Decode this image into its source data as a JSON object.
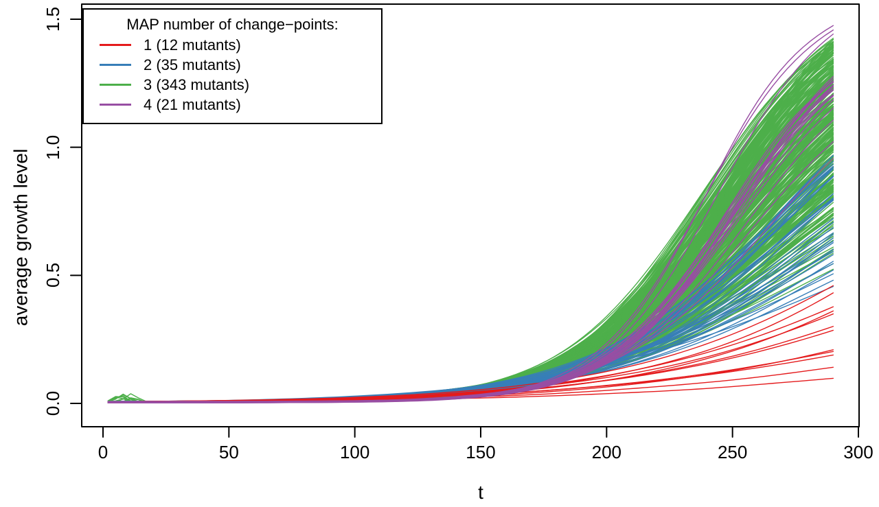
{
  "chart_data": {
    "type": "line",
    "title": "",
    "xlabel": "t",
    "ylabel": "average growth level",
    "xlim": [
      0,
      300
    ],
    "ylim": [
      0,
      1.5
    ],
    "x_ticks": [
      0,
      50,
      100,
      150,
      200,
      250,
      300
    ],
    "y_ticks": [
      "0.0",
      "0.5",
      "1.0",
      "1.5"
    ],
    "t_data_range": [
      2,
      290
    ],
    "grid": false,
    "legend": {
      "title": "MAP number of change−points:",
      "position": "top-left",
      "items": [
        {
          "label": "1 (12 mutants)",
          "color": "#E41A1C"
        },
        {
          "label": "2 (35 mutants)",
          "color": "#377EB8"
        },
        {
          "label": "3 (343 mutants)",
          "color": "#4DAF4A"
        },
        {
          "label": "4 (21 mutants)",
          "color": "#984EA3"
        }
      ]
    },
    "seed": 1337,
    "series_groups": [
      {
        "name": "changepoints-1",
        "label": "1 (12 mutants)",
        "color": "#E41A1C",
        "count": 12,
        "end_values": [
          0.1,
          0.14,
          0.19,
          0.2,
          0.21,
          0.285,
          0.3,
          0.35,
          0.36,
          0.375,
          0.43,
          0.46
        ],
        "tm_base": 340,
        "tm_jit": 20,
        "k_base": 0.012,
        "k_slope": 0.014,
        "k_jit": 0.002,
        "bumps": 0,
        "draw_order": 2
      },
      {
        "name": "changepoints-2",
        "label": "2 (35 mutants)",
        "color": "#377EB8",
        "count": 35,
        "end_min": 0.38,
        "end_span": 0.6,
        "end_pow": 0.85,
        "tm_base": 308,
        "tm_jit": 12,
        "k_base": 0.012,
        "k_slope": 0.014,
        "k_jit": 0.004,
        "bumps": 0,
        "draw_order": 1
      },
      {
        "name": "changepoints-3",
        "label": "3 (343 mutants)",
        "color": "#4DAF4A",
        "count": 343,
        "end_min": 0.5,
        "end_span": 0.92,
        "end_pow": 0.55,
        "tm_base": 300,
        "tm_jit": 14,
        "k_base": 0.012,
        "k_slope": 0.016,
        "k_jit": 0.004,
        "bumps": 10,
        "draw_order": 0
      },
      {
        "name": "changepoints-4",
        "label": "4 (21 mutants)",
        "color": "#984EA3",
        "count": 21,
        "end_values": [
          1.49,
          1.465,
          1.43,
          1.28,
          1.27,
          1.26,
          1.255,
          1.25,
          1.245,
          1.24,
          1.235,
          1.23,
          1.225,
          1.22,
          1.21,
          1.2,
          1.19,
          1.15,
          1.1,
          1.03,
          0.95
        ],
        "tm_base": 300,
        "tm_jit": 6,
        "k_base": 0.01,
        "k_slope": 0.024,
        "k_jit": 0.002,
        "bumps": 0,
        "draw_order": 3
      }
    ]
  }
}
